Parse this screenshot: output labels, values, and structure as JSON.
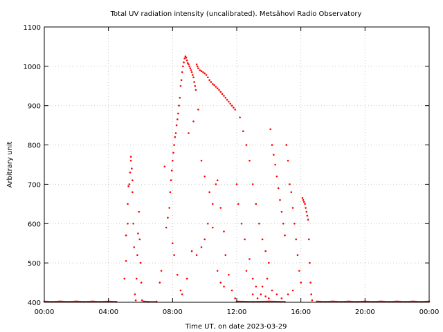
{
  "chart_data": {
    "type": "scatter",
    "title": "Total UV radiation intensity (uncalibrated). Metsähovi Radio Observatory",
    "xlabel": "Time UT, on date 2023-03-29",
    "ylabel": "Arbitrary unit",
    "xlim": [
      "00:00",
      "24:00"
    ],
    "ylim": [
      400,
      1100
    ],
    "x_ticks": [
      "00:00",
      "04:00",
      "08:00",
      "12:00",
      "16:00",
      "20:00",
      "00:00"
    ],
    "y_ticks": [
      400,
      500,
      600,
      700,
      800,
      900,
      1000,
      1100
    ],
    "grid": true,
    "marker_color": "#ff0000",
    "x_unit": "hours UT",
    "series": [
      {
        "points": [
          [
            5.0,
            460
          ],
          [
            5.1,
            505
          ],
          [
            5.1,
            570
          ],
          [
            5.2,
            600
          ],
          [
            5.2,
            650
          ],
          [
            5.25,
            695
          ],
          [
            5.3,
            700
          ],
          [
            5.35,
            730
          ],
          [
            5.4,
            760
          ],
          [
            5.4,
            770
          ],
          [
            5.45,
            740
          ],
          [
            5.5,
            710
          ],
          [
            5.5,
            680
          ],
          [
            5.55,
            600
          ],
          [
            5.6,
            540
          ],
          [
            5.65,
            420
          ],
          [
            5.7,
            405
          ],
          [
            5.75,
            460
          ],
          [
            5.8,
            520
          ],
          [
            5.85,
            575
          ],
          [
            5.9,
            630
          ],
          [
            5.95,
            560
          ],
          [
            6.0,
            500
          ],
          [
            6.05,
            450
          ],
          [
            6.1,
            405
          ],
          [
            7.0,
            402
          ],
          [
            7.2,
            450
          ],
          [
            7.3,
            480
          ],
          [
            7.5,
            745
          ],
          [
            7.6,
            590
          ],
          [
            7.7,
            615
          ],
          [
            7.8,
            640
          ],
          [
            7.85,
            680
          ],
          [
            7.9,
            710
          ],
          [
            7.95,
            735
          ],
          [
            8.0,
            760
          ],
          [
            8.05,
            780
          ],
          [
            8.1,
            800
          ],
          [
            8.15,
            820
          ],
          [
            8.2,
            830
          ],
          [
            8.25,
            850
          ],
          [
            8.3,
            865
          ],
          [
            8.35,
            880
          ],
          [
            8.4,
            900
          ],
          [
            8.45,
            920
          ],
          [
            8.5,
            950
          ],
          [
            8.55,
            965
          ],
          [
            8.6,
            985
          ],
          [
            8.65,
            1000
          ],
          [
            8.7,
            1010
          ],
          [
            8.75,
            1020
          ],
          [
            8.8,
            1025
          ],
          [
            8.85,
            1022
          ],
          [
            8.9,
            1015
          ],
          [
            8.95,
            1008
          ],
          [
            9.0,
            1005
          ],
          [
            9.05,
            1000
          ],
          [
            9.1,
            995
          ],
          [
            9.15,
            990
          ],
          [
            9.2,
            985
          ],
          [
            9.25,
            978
          ],
          [
            9.3,
            972
          ],
          [
            9.35,
            960
          ],
          [
            9.4,
            950
          ],
          [
            9.45,
            940
          ],
          [
            9.5,
            1005
          ],
          [
            9.55,
            1000
          ],
          [
            9.6,
            995
          ],
          [
            9.7,
            990
          ],
          [
            9.8,
            988
          ],
          [
            9.9,
            985
          ],
          [
            10.0,
            982
          ],
          [
            10.1,
            978
          ],
          [
            10.2,
            972
          ],
          [
            10.3,
            965
          ],
          [
            10.4,
            960
          ],
          [
            10.5,
            955
          ],
          [
            10.6,
            952
          ],
          [
            10.7,
            948
          ],
          [
            10.8,
            944
          ],
          [
            10.9,
            940
          ],
          [
            11.0,
            935
          ],
          [
            11.1,
            930
          ],
          [
            11.2,
            925
          ],
          [
            11.3,
            920
          ],
          [
            11.4,
            915
          ],
          [
            11.5,
            910
          ],
          [
            11.6,
            905
          ],
          [
            11.7,
            900
          ],
          [
            11.8,
            895
          ],
          [
            11.9,
            890
          ],
          [
            8.0,
            550
          ],
          [
            8.1,
            520
          ],
          [
            8.3,
            470
          ],
          [
            8.5,
            430
          ],
          [
            8.6,
            420
          ],
          [
            8.9,
            460
          ],
          [
            9.2,
            530
          ],
          [
            9.5,
            520
          ],
          [
            9.8,
            540
          ],
          [
            10.0,
            560
          ],
          [
            10.2,
            600
          ],
          [
            10.5,
            650
          ],
          [
            10.7,
            700
          ],
          [
            10.8,
            710
          ],
          [
            11.0,
            640
          ],
          [
            11.2,
            580
          ],
          [
            11.3,
            520
          ],
          [
            11.5,
            470
          ],
          [
            11.7,
            430
          ],
          [
            11.9,
            410
          ],
          [
            12.0,
            700
          ],
          [
            12.1,
            650
          ],
          [
            12.3,
            600
          ],
          [
            12.5,
            560
          ],
          [
            12.8,
            510
          ],
          [
            13.0,
            460
          ],
          [
            13.2,
            440
          ],
          [
            13.5,
            420
          ],
          [
            13.8,
            415
          ],
          [
            14.0,
            410
          ],
          [
            12.2,
            870
          ],
          [
            12.4,
            835
          ],
          [
            12.6,
            800
          ],
          [
            12.8,
            760
          ],
          [
            13.0,
            700
          ],
          [
            13.2,
            650
          ],
          [
            13.4,
            600
          ],
          [
            13.6,
            560
          ],
          [
            13.8,
            530
          ],
          [
            14.0,
            500
          ],
          [
            14.1,
            840
          ],
          [
            14.2,
            800
          ],
          [
            14.3,
            775
          ],
          [
            14.4,
            750
          ],
          [
            14.5,
            720
          ],
          [
            14.6,
            690
          ],
          [
            14.7,
            660
          ],
          [
            14.8,
            630
          ],
          [
            14.9,
            600
          ],
          [
            15.0,
            570
          ],
          [
            15.1,
            800
          ],
          [
            15.2,
            760
          ],
          [
            15.3,
            700
          ],
          [
            15.4,
            680
          ],
          [
            15.5,
            640
          ],
          [
            15.6,
            600
          ],
          [
            15.7,
            560
          ],
          [
            15.8,
            520
          ],
          [
            15.9,
            480
          ],
          [
            16.0,
            450
          ],
          [
            16.1,
            665
          ],
          [
            16.15,
            660
          ],
          [
            16.2,
            655
          ],
          [
            16.25,
            650
          ],
          [
            16.3,
            640
          ],
          [
            16.35,
            630
          ],
          [
            16.4,
            620
          ],
          [
            16.45,
            610
          ],
          [
            16.5,
            560
          ],
          [
            16.55,
            500
          ],
          [
            16.6,
            450
          ],
          [
            16.65,
            420
          ],
          [
            16.7,
            405
          ],
          [
            9.0,
            830
          ],
          [
            9.3,
            860
          ],
          [
            9.6,
            890
          ],
          [
            9.8,
            760
          ],
          [
            10.0,
            720
          ],
          [
            10.3,
            680
          ],
          [
            10.5,
            590
          ],
          [
            10.8,
            480
          ],
          [
            11.0,
            450
          ],
          [
            11.2,
            440
          ],
          [
            12.6,
            480
          ],
          [
            13.0,
            420
          ],
          [
            13.3,
            410
          ],
          [
            13.6,
            440
          ],
          [
            13.9,
            460
          ],
          [
            14.2,
            430
          ],
          [
            14.5,
            420
          ],
          [
            14.8,
            410
          ],
          [
            15.2,
            420
          ],
          [
            15.5,
            430
          ]
        ],
        "baseline": [
          [
            0.0,
            402
          ],
          [
            0.5,
            401
          ],
          [
            1.0,
            402
          ],
          [
            1.5,
            401
          ],
          [
            2.0,
            402
          ],
          [
            2.5,
            401
          ],
          [
            3.0,
            402
          ],
          [
            3.5,
            401
          ],
          [
            4.0,
            402
          ],
          [
            4.5,
            401
          ],
          [
            6.2,
            402
          ],
          [
            6.5,
            401
          ],
          [
            7.0,
            401
          ],
          [
            12.0,
            402
          ],
          [
            13.0,
            401
          ],
          [
            14.0,
            402
          ],
          [
            15.0,
            401
          ],
          [
            17.0,
            402
          ],
          [
            17.5,
            401
          ],
          [
            18.0,
            402
          ],
          [
            18.5,
            401
          ],
          [
            19.0,
            402
          ],
          [
            19.5,
            401
          ],
          [
            20.0,
            402
          ],
          [
            20.5,
            401
          ],
          [
            21.0,
            402
          ],
          [
            21.5,
            401
          ],
          [
            22.0,
            402
          ],
          [
            22.5,
            401
          ],
          [
            23.0,
            402
          ],
          [
            23.5,
            401
          ],
          [
            24.0,
            402
          ]
        ]
      }
    ]
  }
}
